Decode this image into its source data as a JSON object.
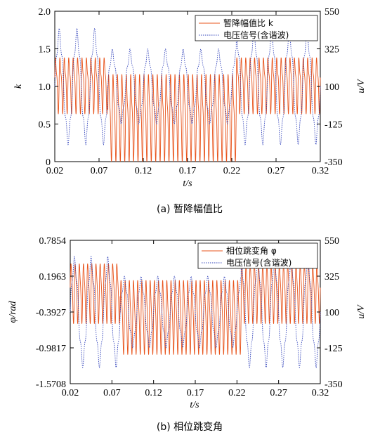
{
  "chart_data": [
    {
      "type": "line",
      "caption": "(a) 暂降幅值比",
      "xlabel": "t/s",
      "ylabel_left": "k",
      "ylabel_right": "u/V",
      "xlim": [
        0.02,
        0.32
      ],
      "ylim_left": [
        0,
        2.0
      ],
      "ylim_right": [
        -350,
        550
      ],
      "x_ticks": [
        "0.02",
        "0.07",
        "0.12",
        "0.17",
        "0.22",
        "0.27",
        "0.32"
      ],
      "y_ticks_left": [
        "0",
        "0.5",
        "1.0",
        "1.5",
        "2.0"
      ],
      "y_ticks_right": [
        "-350",
        "-125",
        "100",
        "325",
        "550"
      ],
      "legend_position": "top-right",
      "grid": false,
      "sag_interval": [
        0.08,
        0.225
      ],
      "series": [
        {
          "name": "暂降幅值比 k",
          "axis": "left",
          "color": "#e8541c",
          "style": "solid",
          "description_values": {
            "normal_range": [
              0.62,
              1.45
            ],
            "sag_range": [
              0.05,
              1.22
            ]
          }
        },
        {
          "name": "电压信号(含谐波)",
          "axis": "right",
          "color": "#3344bb",
          "style": "dotted",
          "description_values": {
            "normal_amplitude": 311,
            "sag_amplitude": 200,
            "frequency_hz": 50,
            "harmonic": 5
          }
        }
      ]
    },
    {
      "type": "line",
      "caption": "(b) 相位跳变角",
      "xlabel": "t/s",
      "ylabel_left": "φ/rad",
      "ylabel_right": "u/V",
      "xlim": [
        0.02,
        0.32
      ],
      "ylim_left": [
        -1.5708,
        0.7854
      ],
      "ylim_right": [
        -350,
        550
      ],
      "x_ticks": [
        "0.02",
        "0.07",
        "0.12",
        "0.17",
        "0.22",
        "0.27",
        "0.32"
      ],
      "y_ticks_left": [
        "-1.5708",
        "-0.9817",
        "-0.3927",
        "0.1963",
        "0.7854"
      ],
      "y_ticks_right": [
        "-350",
        "-125",
        "100",
        "325",
        "550"
      ],
      "legend_position": "top-right",
      "grid": false,
      "sag_interval": [
        0.08,
        0.225
      ],
      "series": [
        {
          "name": "相位跳变角 φ",
          "axis": "left",
          "color": "#e8541c",
          "style": "solid",
          "description_values": {
            "normal_range": [
              -0.6,
              0.45
            ],
            "sag_range": [
              -1.1,
              0.2
            ]
          }
        },
        {
          "name": "电压信号(含谐波)",
          "axis": "right",
          "color": "#3344bb",
          "style": "dotted",
          "description_values": {
            "normal_amplitude": 311,
            "sag_amplitude": 200,
            "frequency_hz": 50,
            "harmonic": 5
          }
        }
      ]
    }
  ]
}
